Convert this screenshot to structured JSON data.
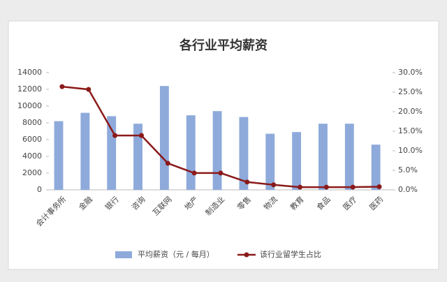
{
  "chart_data": {
    "type": "bar-line",
    "title": "各行业平均薪资",
    "categories": [
      "会计事务所",
      "金融",
      "银行",
      "咨询",
      "互联网",
      "地产",
      "制造业",
      "零售",
      "物流",
      "教育",
      "食品",
      "医疗",
      "医药"
    ],
    "series": [
      {
        "name": "平均薪资（元 / 每月）",
        "type": "bar",
        "color": "#8eaadb",
        "values": [
          8200,
          9200,
          8800,
          7900,
          12400,
          8900,
          9400,
          8700,
          6700,
          6900,
          7900,
          7900,
          5400
        ]
      },
      {
        "name": "该行业留学生占比",
        "type": "line",
        "axis": "y2",
        "color": "#8b1a1a",
        "values": [
          26.4,
          25.7,
          13.9,
          13.9,
          6.8,
          4.3,
          4.3,
          2.0,
          1.3,
          0.7,
          0.7,
          0.7,
          0.8
        ]
      }
    ],
    "ylim": [
      0,
      14000
    ],
    "yticks": [
      0,
      2000,
      4000,
      6000,
      8000,
      10000,
      12000,
      14000
    ],
    "y2lim": [
      0,
      30
    ],
    "y2ticks": [
      {
        "value": 0,
        "label": "0.0%"
      },
      {
        "value": 5,
        "label": "5.0%"
      },
      {
        "value": 10,
        "label": "10.0%"
      },
      {
        "value": 15,
        "label": "15.0%"
      },
      {
        "value": 20,
        "label": "20.0%"
      },
      {
        "value": 25,
        "label": "25.0%"
      },
      {
        "value": 30,
        "label": "30.0%"
      }
    ],
    "legend": "bottom"
  }
}
